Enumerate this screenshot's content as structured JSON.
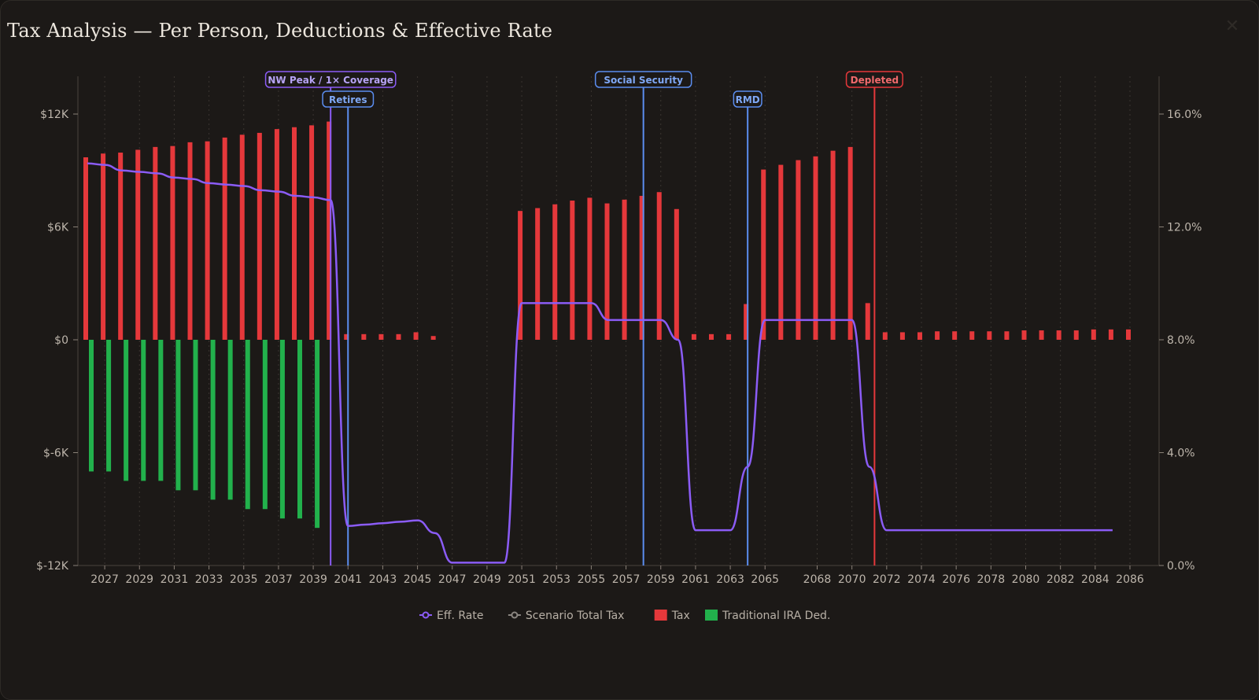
{
  "header": {
    "title": "Tax Analysis — Per Person, Deductions & Effective Rate",
    "close_icon": "close-icon"
  },
  "chart_data": {
    "type": "bar",
    "title": "Tax Analysis — Per Person, Deductions & Effective Rate",
    "xlabel": "",
    "ylabel": "",
    "y_left": {
      "min": -12000,
      "max": 12000,
      "ticks": [
        -12000,
        -6000,
        0,
        6000,
        12000
      ],
      "tick_labels": [
        "$-12K",
        "$-6K",
        "$0",
        "$6K",
        "$12K"
      ]
    },
    "y_right": {
      "min": 0,
      "max": 16,
      "ticks": [
        0,
        4,
        8,
        12,
        16
      ],
      "tick_labels": [
        "0.0%",
        "4.0%",
        "8.0%",
        "12.0%",
        "16.0%"
      ]
    },
    "x_range": [
      2026,
      2086
    ],
    "x_tick_labels": [
      "2027",
      "2029",
      "2031",
      "2033",
      "2035",
      "2037",
      "2039",
      "2041",
      "2043",
      "2045",
      "2047",
      "2049",
      "2051",
      "2053",
      "2055",
      "2057",
      "2059",
      "2061",
      "2063",
      "2065",
      "2068",
      "2070",
      "2072",
      "2074",
      "2076",
      "2078",
      "2080",
      "2082",
      "2084",
      "2086"
    ],
    "grid": true,
    "legend_position": "bottom-center",
    "legend": [
      "Eff. Rate",
      "Scenario Total Tax",
      "Tax",
      "Traditional IRA Ded."
    ],
    "colors": {
      "tax": "#e5383b",
      "deduction": "#22b14c",
      "eff_rate": "#8b5cf6",
      "scenario": "#8a8580",
      "marker_blue": "#5b8def",
      "marker_red": "#e5383b",
      "marker_purple": "#8b5cf6"
    },
    "series": [
      {
        "name": "Tax",
        "type": "bar",
        "points": [
          [
            2026,
            9700
          ],
          [
            2027,
            9900
          ],
          [
            2028,
            9950
          ],
          [
            2029,
            10100
          ],
          [
            2030,
            10250
          ],
          [
            2031,
            10300
          ],
          [
            2032,
            10500
          ],
          [
            2033,
            10550
          ],
          [
            2034,
            10750
          ],
          [
            2035,
            10900
          ],
          [
            2036,
            11000
          ],
          [
            2037,
            11200
          ],
          [
            2038,
            11300
          ],
          [
            2039,
            11400
          ],
          [
            2040,
            11600
          ],
          [
            2041,
            300
          ],
          [
            2042,
            300
          ],
          [
            2043,
            300
          ],
          [
            2044,
            300
          ],
          [
            2045,
            400
          ],
          [
            2046,
            200
          ],
          [
            2051,
            6850
          ],
          [
            2052,
            7000
          ],
          [
            2053,
            7200
          ],
          [
            2054,
            7400
          ],
          [
            2055,
            7550
          ],
          [
            2056,
            7250
          ],
          [
            2057,
            7450
          ],
          [
            2058,
            7650
          ],
          [
            2059,
            7850
          ],
          [
            2060,
            6950
          ],
          [
            2061,
            300
          ],
          [
            2062,
            300
          ],
          [
            2063,
            300
          ],
          [
            2064,
            1900
          ],
          [
            2065,
            9050
          ],
          [
            2066,
            9300
          ],
          [
            2067,
            9550
          ],
          [
            2068,
            9750
          ],
          [
            2069,
            10050
          ],
          [
            2070,
            10250
          ],
          [
            2071,
            1950
          ],
          [
            2072,
            400
          ],
          [
            2073,
            400
          ],
          [
            2074,
            400
          ],
          [
            2075,
            450
          ],
          [
            2076,
            450
          ],
          [
            2077,
            450
          ],
          [
            2078,
            450
          ],
          [
            2079,
            450
          ],
          [
            2080,
            500
          ],
          [
            2081,
            500
          ],
          [
            2082,
            500
          ],
          [
            2083,
            500
          ],
          [
            2084,
            550
          ],
          [
            2085,
            550
          ],
          [
            2086,
            550
          ]
        ]
      },
      {
        "name": "Traditional IRA Ded.",
        "type": "bar",
        "points": [
          [
            2026,
            -7000
          ],
          [
            2027,
            -7000
          ],
          [
            2028,
            -7500
          ],
          [
            2029,
            -7500
          ],
          [
            2030,
            -7500
          ],
          [
            2031,
            -8000
          ],
          [
            2032,
            -8000
          ],
          [
            2033,
            -8500
          ],
          [
            2034,
            -8500
          ],
          [
            2035,
            -9000
          ],
          [
            2036,
            -9000
          ],
          [
            2037,
            -9500
          ],
          [
            2038,
            -9500
          ],
          [
            2039,
            -10000
          ]
        ]
      },
      {
        "name": "Eff. Rate",
        "type": "line",
        "points": [
          [
            2026,
            14.25
          ],
          [
            2027,
            14.2
          ],
          [
            2028,
            14.0
          ],
          [
            2029,
            13.95
          ],
          [
            2030,
            13.9
          ],
          [
            2031,
            13.75
          ],
          [
            2032,
            13.7
          ],
          [
            2033,
            13.55
          ],
          [
            2034,
            13.5
          ],
          [
            2035,
            13.45
          ],
          [
            2036,
            13.3
          ],
          [
            2037,
            13.25
          ],
          [
            2038,
            13.1
          ],
          [
            2039,
            13.05
          ],
          [
            2040,
            12.95
          ],
          [
            2041,
            1.4
          ],
          [
            2042,
            1.45
          ],
          [
            2043,
            1.5
          ],
          [
            2044,
            1.55
          ],
          [
            2045,
            1.6
          ],
          [
            2046,
            1.15
          ],
          [
            2047,
            0.1
          ],
          [
            2048,
            0.1
          ],
          [
            2049,
            0.1
          ],
          [
            2050,
            0.1
          ],
          [
            2051,
            9.3
          ],
          [
            2052,
            9.3
          ],
          [
            2053,
            9.3
          ],
          [
            2054,
            9.3
          ],
          [
            2055,
            9.3
          ],
          [
            2056,
            8.7
          ],
          [
            2057,
            8.7
          ],
          [
            2058,
            8.7
          ],
          [
            2059,
            8.7
          ],
          [
            2060,
            8.0
          ],
          [
            2061,
            1.25
          ],
          [
            2062,
            1.25
          ],
          [
            2063,
            1.25
          ],
          [
            2064,
            3.5
          ],
          [
            2065,
            8.7
          ],
          [
            2066,
            8.7
          ],
          [
            2067,
            8.7
          ],
          [
            2068,
            8.7
          ],
          [
            2069,
            8.7
          ],
          [
            2070,
            8.7
          ],
          [
            2071,
            3.5
          ],
          [
            2072,
            1.25
          ],
          [
            2073,
            1.25
          ],
          [
            2074,
            1.25
          ],
          [
            2075,
            1.25
          ],
          [
            2076,
            1.25
          ],
          [
            2077,
            1.25
          ],
          [
            2078,
            1.25
          ],
          [
            2079,
            1.25
          ],
          [
            2080,
            1.25
          ],
          [
            2081,
            1.25
          ],
          [
            2082,
            1.25
          ],
          [
            2083,
            1.25
          ],
          [
            2084,
            1.25
          ],
          [
            2085,
            1.25
          ]
        ]
      }
    ],
    "annotations": [
      {
        "label": "NW Peak / 1× Coverage",
        "x": 2040,
        "color": "#8b5cf6",
        "row": 0
      },
      {
        "label": "Retires",
        "x": 2041,
        "color": "#5b8def",
        "row": 1
      },
      {
        "label": "Social Security",
        "x": 2058,
        "color": "#5b8def",
        "row": 0
      },
      {
        "label": "RMD",
        "x": 2064,
        "color": "#5b8def",
        "row": 1
      },
      {
        "label": "Depleted",
        "x": 2071.3,
        "color": "#e5383b",
        "row": 0
      }
    ]
  }
}
